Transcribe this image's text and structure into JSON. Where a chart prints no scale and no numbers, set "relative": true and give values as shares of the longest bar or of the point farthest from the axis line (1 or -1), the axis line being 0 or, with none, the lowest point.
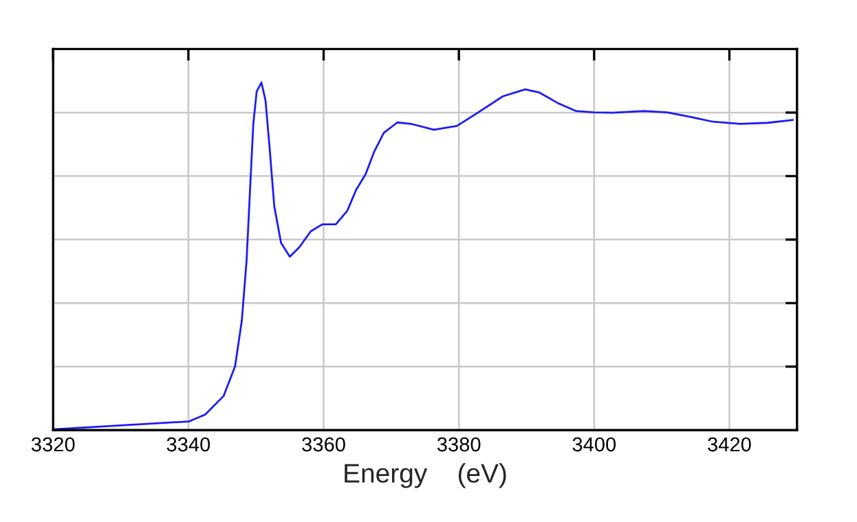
{
  "chart_data": {
    "type": "line",
    "xlabel": "Energy    (eV)",
    "relative": true,
    "xlim": [
      3320,
      3430
    ],
    "xticks": [
      3320,
      3340,
      3360,
      3380,
      3400,
      3420
    ],
    "grid": true,
    "tick_labels": "x",
    "marker": "none",
    "line_style": "solid",
    "series": [
      {
        "color": "#1c1cf0",
        "x": [
          3320,
          3340.1,
          3342.5,
          3345.2,
          3346.9,
          3347.9,
          3348.6,
          3349.1,
          3349.6,
          3350.1,
          3350.8,
          3351.4,
          3352.0,
          3352.7,
          3353.7,
          3355.0,
          3356.4,
          3358.1,
          3359.8,
          3361.8,
          3363.5,
          3364.8,
          3366.2,
          3367.5,
          3368.9,
          3370.9,
          3372.9,
          3376.3,
          3379.7,
          3382.4,
          3386.5,
          3389.8,
          3391.9,
          3394.6,
          3397.3,
          3400.0,
          3402.7,
          3407.4,
          3410.8,
          3414.2,
          3417.6,
          3421.6,
          3425.7,
          3429.4
        ],
        "values": [
          0.002,
          0.025,
          0.045,
          0.098,
          0.183,
          0.315,
          0.486,
          0.684,
          0.881,
          0.974,
          1.0,
          0.949,
          0.815,
          0.644,
          0.539,
          0.499,
          0.526,
          0.572,
          0.592,
          0.592,
          0.631,
          0.691,
          0.736,
          0.802,
          0.855,
          0.885,
          0.881,
          0.864,
          0.875,
          0.908,
          0.96,
          0.98,
          0.971,
          0.941,
          0.918,
          0.914,
          0.913,
          0.918,
          0.914,
          0.901,
          0.887,
          0.881,
          0.884,
          0.892
        ]
      }
    ]
  }
}
